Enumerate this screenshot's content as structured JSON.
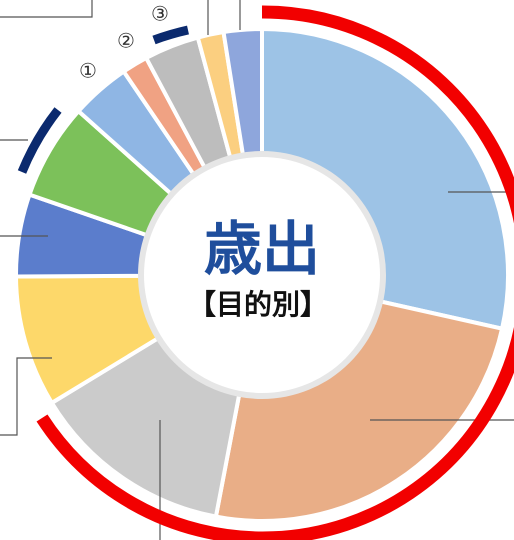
{
  "chart_data": {
    "type": "donut",
    "title": "歳出",
    "subtitle": "【目的別】",
    "values": [
      28.5,
      24.5,
      13.3,
      8.6,
      5.4,
      6.3,
      3.9,
      1.7,
      3.6,
      1.7,
      2.5
    ],
    "colors": [
      "#9dc3e6",
      "#e9ae87",
      "#cbcbcb",
      "#fdd86a",
      "#5b7dcc",
      "#7cc15a",
      "#8fb6e4",
      "#f0a283",
      "#bdbdbd",
      "#fbcf80",
      "#8ea6dc"
    ],
    "annotations": [
      "①",
      "②",
      "③"
    ]
  }
}
